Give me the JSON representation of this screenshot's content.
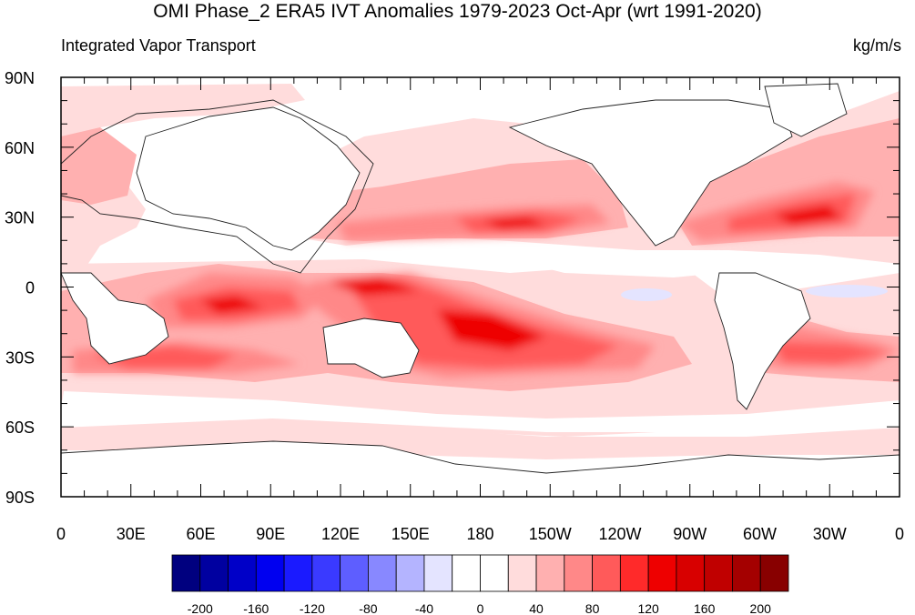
{
  "title": "OMI Phase_2 ERA5 IVT Anomalies 1979-2023 Oct-Apr (wrt 1991-2020)",
  "left_subtitle": "Integrated Vapor Transport",
  "right_subtitle": "kg/m/s",
  "lon_ticks": [
    {
      "lon": 0,
      "label": "0"
    },
    {
      "lon": 30,
      "label": "30E"
    },
    {
      "lon": 60,
      "label": "60E"
    },
    {
      "lon": 90,
      "label": "90E"
    },
    {
      "lon": 120,
      "label": "120E"
    },
    {
      "lon": 150,
      "label": "150E"
    },
    {
      "lon": 180,
      "label": "180"
    },
    {
      "lon": 210,
      "label": "150W"
    },
    {
      "lon": 240,
      "label": "120W"
    },
    {
      "lon": 270,
      "label": "90W"
    },
    {
      "lon": 300,
      "label": "60W"
    },
    {
      "lon": 330,
      "label": "30W"
    },
    {
      "lon": 360,
      "label": "0"
    }
  ],
  "lat_ticks": [
    {
      "lat": 90,
      "label": "90N"
    },
    {
      "lat": 60,
      "label": "60N"
    },
    {
      "lat": 30,
      "label": "30N"
    },
    {
      "lat": 0,
      "label": "0"
    },
    {
      "lat": -30,
      "label": "30S"
    },
    {
      "lat": -60,
      "label": "60S"
    },
    {
      "lat": -90,
      "label": "90S"
    }
  ],
  "colorbar": {
    "colors": [
      "#00007f",
      "#0000a0",
      "#0000c8",
      "#0000f0",
      "#1a1aff",
      "#3a3aff",
      "#5e5eff",
      "#8888ff",
      "#b4b4ff",
      "#e4e4ff",
      "#ffffff",
      "#ffffff",
      "#ffdcdc",
      "#ffb0b0",
      "#ff8888",
      "#ff5a5a",
      "#ff2a2a",
      "#ee0000",
      "#d80000",
      "#c00000",
      "#a40000",
      "#880000"
    ],
    "labels": [
      {
        "value": -200,
        "label": "-200"
      },
      {
        "value": -160,
        "label": "-160"
      },
      {
        "value": -120,
        "label": "-120"
      },
      {
        "value": -80,
        "label": "-80"
      },
      {
        "value": -40,
        "label": "-40"
      },
      {
        "value": 0,
        "label": "0"
      },
      {
        "value": 40,
        "label": "40"
      },
      {
        "value": 80,
        "label": "80"
      },
      {
        "value": 120,
        "label": "120"
      },
      {
        "value": 160,
        "label": "160"
      },
      {
        "value": 200,
        "label": "200"
      }
    ]
  }
}
